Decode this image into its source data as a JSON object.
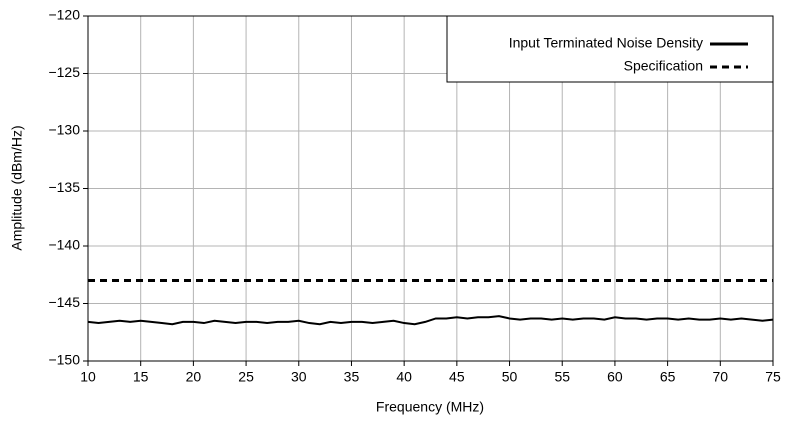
{
  "chart_data": {
    "type": "line",
    "x_label": "Frequency (MHz)",
    "y_label": "Amplitude (dBm/Hz)",
    "xlim": [
      10,
      75
    ],
    "ylim": [
      -150,
      -120
    ],
    "xticks": [
      10,
      15,
      20,
      25,
      30,
      35,
      40,
      45,
      50,
      55,
      60,
      65,
      70,
      75
    ],
    "yticks": [
      {
        "value": -120,
        "label": "−120"
      },
      {
        "value": -125,
        "label": "−125"
      },
      {
        "value": -130,
        "label": "−130"
      },
      {
        "value": -135,
        "label": "−135"
      },
      {
        "value": -140,
        "label": "−140"
      },
      {
        "value": -145,
        "label": "−145"
      },
      {
        "value": -150,
        "label": "−150"
      }
    ],
    "grid": true,
    "legend": "upper-right",
    "series": [
      {
        "name": "Input Terminated Noise Density",
        "color": "#000000",
        "style": "solid",
        "x": [
          10,
          11,
          12,
          13,
          14,
          15,
          16,
          17,
          18,
          19,
          20,
          21,
          22,
          23,
          24,
          25,
          26,
          27,
          28,
          29,
          30,
          31,
          32,
          33,
          34,
          35,
          36,
          37,
          38,
          39,
          40,
          41,
          42,
          43,
          44,
          45,
          46,
          47,
          48,
          49,
          50,
          51,
          52,
          53,
          54,
          55,
          56,
          57,
          58,
          59,
          60,
          61,
          62,
          63,
          64,
          65,
          66,
          67,
          68,
          69,
          70,
          71,
          72,
          73,
          74,
          75
        ],
        "values": [
          -146.6,
          -146.7,
          -146.6,
          -146.5,
          -146.6,
          -146.5,
          -146.6,
          -146.7,
          -146.8,
          -146.6,
          -146.6,
          -146.7,
          -146.5,
          -146.6,
          -146.7,
          -146.6,
          -146.6,
          -146.7,
          -146.6,
          -146.6,
          -146.5,
          -146.7,
          -146.8,
          -146.6,
          -146.7,
          -146.6,
          -146.6,
          -146.7,
          -146.6,
          -146.5,
          -146.7,
          -146.8,
          -146.6,
          -146.3,
          -146.3,
          -146.2,
          -146.3,
          -146.2,
          -146.2,
          -146.1,
          -146.3,
          -146.4,
          -146.3,
          -146.3,
          -146.4,
          -146.3,
          -146.4,
          -146.3,
          -146.3,
          -146.4,
          -146.2,
          -146.3,
          -146.3,
          -146.4,
          -146.3,
          -146.3,
          -146.4,
          -146.3,
          -146.4,
          -146.4,
          -146.3,
          -146.4,
          -146.3,
          -146.4,
          -146.5,
          -146.4
        ]
      },
      {
        "name": "Specification",
        "color": "#000000",
        "style": "dashed",
        "x": [
          10,
          75
        ],
        "values": [
          -143,
          -143
        ]
      }
    ]
  }
}
